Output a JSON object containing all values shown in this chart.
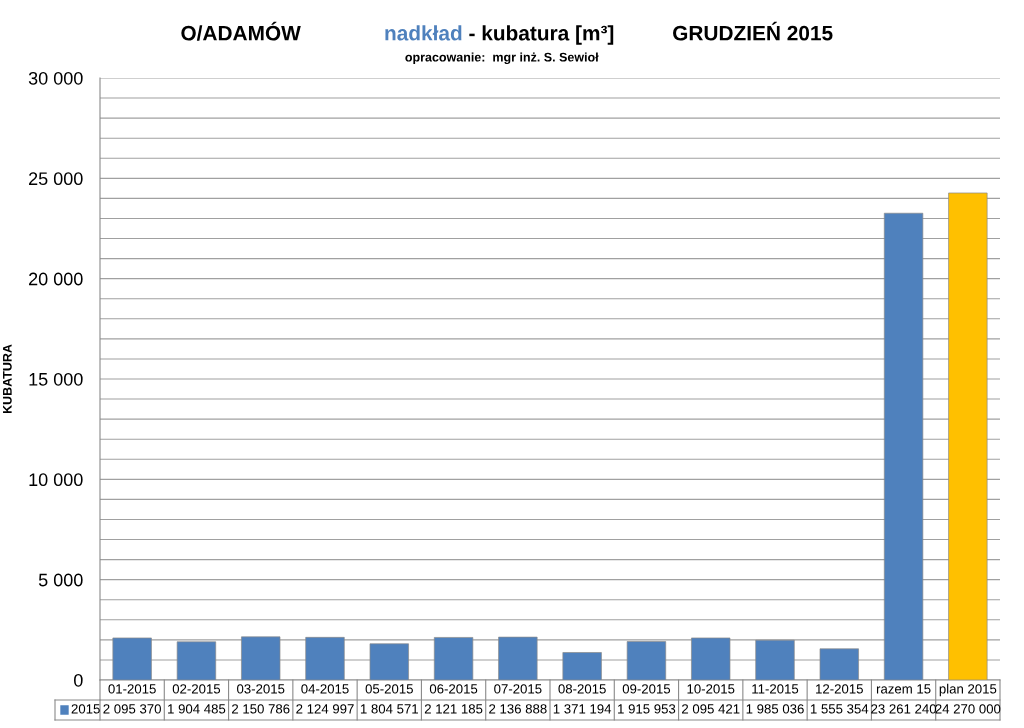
{
  "chart_data": {
    "type": "bar",
    "title": "nadkład - kubatura [m³]",
    "annotations": [
      "O/ADAMÓW",
      "GRUDZIEŃ 2015",
      "opracowanie:  mgr inż. S. Sewioł",
      "2 095 370",
      "1 904 485",
      "2 150 786",
      "2 124 997",
      "1 804 571",
      "2 121 185",
      "2 136 888",
      "1 371 194",
      "1 915 953",
      "2 095 421",
      "1 985 036",
      "1 555 354",
      "23 261 240",
      "24 270 000"
    ],
    "ylabel": "KUBATURA",
    "categories": [
      "01-2015",
      "02-2015",
      "03-2015",
      "04-2015",
      "05-2015",
      "06-2015",
      "07-2015",
      "08-2015",
      "09-2015",
      "10-2015",
      "11-2015",
      "12-2015",
      "razem 15",
      "plan 2015"
    ],
    "series": [
      {
        "name": "2015",
        "color": "#4f81bd",
        "colors": [
          "#4f81bd",
          "#4f81bd",
          "#4f81bd",
          "#4f81bd",
          "#4f81bd",
          "#4f81bd",
          "#4f81bd",
          "#4f81bd",
          "#4f81bd",
          "#4f81bd",
          "#4f81bd",
          "#4f81bd",
          "#4f81bd",
          "#ffc000"
        ],
        "values": [
          2095,
          1904,
          2151,
          2125,
          1805,
          2121,
          2137,
          1371,
          1916,
          2095,
          1985,
          1555,
          23261,
          24270
        ]
      }
    ],
    "ylim": [
      0,
      30000
    ],
    "yticks": [
      0,
      {
        "value": 1000,
        "label": null
      },
      {
        "value": 2000,
        "label": null
      },
      {
        "value": 3000,
        "label": null
      },
      {
        "value": 4000,
        "label": null
      },
      {
        "value": 5000,
        "label": "5 000"
      },
      {
        "value": 6000,
        "label": null
      },
      {
        "value": 7000,
        "label": null
      },
      {
        "value": 8000,
        "label": null
      },
      {
        "value": 9000,
        "label": null
      },
      {
        "value": 10000,
        "label": "10 000"
      },
      {
        "value": 11000,
        "label": null
      },
      {
        "value": 12000,
        "label": null
      },
      {
        "value": 13000,
        "label": null
      },
      {
        "value": 14000,
        "label": null
      },
      {
        "value": 15000,
        "label": "15 000"
      },
      {
        "value": 16000,
        "label": null
      },
      {
        "value": 17000,
        "label": null
      },
      {
        "value": 18000,
        "label": null
      },
      {
        "value": 19000,
        "label": null
      },
      {
        "value": 20000,
        "label": "20 000"
      },
      {
        "value": 21000,
        "label": null
      },
      {
        "value": 22000,
        "label": null
      },
      {
        "value": 23000,
        "label": null
      },
      {
        "value": 24000,
        "label": null
      },
      {
        "value": 25000,
        "label": "25 000"
      },
      {
        "value": 26000,
        "label": null
      },
      {
        "value": 27000,
        "label": null
      },
      {
        "value": 28000,
        "label": null
      },
      {
        "value": 29000,
        "label": null
      },
      {
        "value": 30000,
        "label": "30 000"
      }
    ],
    "grid": "y",
    "legend": "bottom"
  }
}
